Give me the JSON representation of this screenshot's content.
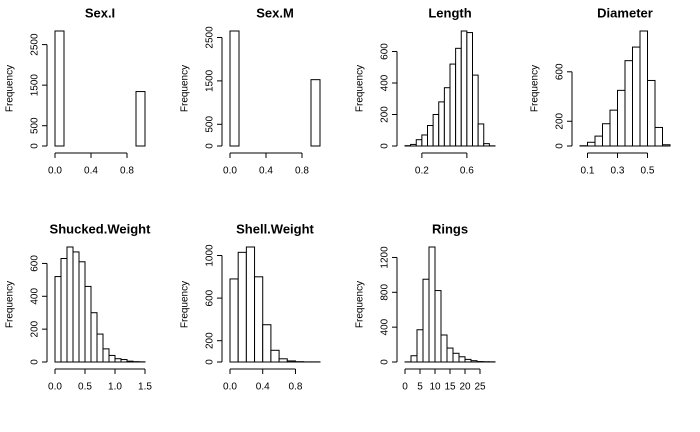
{
  "chart_data": [
    {
      "type": "histogram",
      "title": "Sex.I",
      "ylabel": "Frequency",
      "bins": [
        0,
        0.1,
        0.2,
        0.3,
        0.4,
        0.5,
        0.6,
        0.7,
        0.8,
        0.9,
        1.0
      ],
      "values": [
        2835,
        0,
        0,
        0,
        0,
        0,
        0,
        0,
        0,
        1342
      ],
      "xlim": [
        0,
        1
      ],
      "ylim": [
        0,
        2835
      ],
      "xticks": [
        {
          "value": 0,
          "label": "0.0"
        },
        0.4,
        0.8
      ],
      "yticks": [
        0,
        500,
        1500,
        2500
      ]
    },
    {
      "type": "histogram",
      "title": "Sex.M",
      "ylabel": "Frequency",
      "bins": [
        0,
        0.1,
        0.2,
        0.3,
        0.4,
        0.5,
        0.6,
        0.7,
        0.8,
        0.9,
        1.0
      ],
      "values": [
        2649,
        0,
        0,
        0,
        0,
        0,
        0,
        0,
        0,
        1528
      ],
      "xlim": [
        0,
        1
      ],
      "ylim": [
        0,
        2649
      ],
      "xticks": [
        {
          "value": 0,
          "label": "0.0"
        },
        0.4,
        0.8
      ],
      "yticks": [
        0,
        500,
        1500,
        2500
      ]
    },
    {
      "type": "histogram",
      "title": "Length",
      "ylabel": "Frequency",
      "bins": [
        0.05,
        0.1,
        0.15,
        0.2,
        0.25,
        0.3,
        0.35,
        0.4,
        0.45,
        0.5,
        0.55,
        0.6,
        0.65,
        0.7,
        0.75,
        0.8,
        0.85
      ],
      "values": [
        2,
        10,
        40,
        70,
        130,
        200,
        280,
        370,
        520,
        620,
        730,
        720,
        450,
        140,
        15,
        1
      ],
      "xlim": [
        0.05,
        0.85
      ],
      "ylim": [
        0,
        730
      ],
      "xticks": [
        0.2,
        0.6
      ],
      "yticks": [
        0,
        200,
        400,
        600
      ]
    },
    {
      "type": "histogram",
      "title": "Diameter",
      "ylabel": "Frequency",
      "bins": [
        0.05,
        0.1,
        0.15,
        0.2,
        0.25,
        0.3,
        0.35,
        0.4,
        0.45,
        0.5,
        0.55,
        0.6,
        0.65
      ],
      "values": [
        2,
        30,
        80,
        180,
        290,
        450,
        690,
        800,
        930,
        530,
        150,
        10
      ],
      "xlim": [
        0.05,
        0.65
      ],
      "ylim": [
        0,
        930
      ],
      "xticks": [
        0.1,
        0.3,
        0.5
      ],
      "yticks": [
        0,
        200,
        600
      ]
    },
    {
      "type": "histogram",
      "title": "Shucked.Weight",
      "ylabel": "Frequency",
      "bins": [
        0,
        0.1,
        0.2,
        0.3,
        0.4,
        0.5,
        0.6,
        0.7,
        0.8,
        0.9,
        1.0,
        1.1,
        1.2,
        1.3,
        1.4,
        1.5
      ],
      "values": [
        520,
        630,
        700,
        670,
        610,
        460,
        300,
        170,
        80,
        40,
        20,
        15,
        5,
        2,
        1
      ],
      "xlim": [
        0,
        1.5
      ],
      "ylim": [
        0,
        700
      ],
      "xticks": [
        {
          "value": 0,
          "label": "0.0"
        },
        0.5,
        {
          "value": 1,
          "label": "1.0"
        },
        1.5
      ],
      "yticks": [
        0,
        200,
        400,
        600
      ]
    },
    {
      "type": "histogram",
      "title": "Shell.Weight",
      "ylabel": "Frequency",
      "bins": [
        0,
        0.1,
        0.2,
        0.3,
        0.4,
        0.5,
        0.6,
        0.7,
        0.8,
        0.9,
        1.0,
        1.1
      ],
      "values": [
        780,
        1030,
        1080,
        800,
        350,
        110,
        30,
        10,
        3,
        1,
        1
      ],
      "xlim": [
        0,
        1.1
      ],
      "ylim": [
        0,
        1080
      ],
      "xticks": [
        {
          "value": 0,
          "label": "0.0"
        },
        0.4,
        0.8
      ],
      "yticks": [
        0,
        200,
        600,
        1000
      ]
    },
    {
      "type": "histogram",
      "title": "Rings",
      "ylabel": "Frequency",
      "bins": [
        0,
        2,
        4,
        6,
        8,
        10,
        12,
        14,
        16,
        18,
        20,
        22,
        24,
        26,
        28,
        30
      ],
      "values": [
        1,
        72,
        370,
        950,
        1320,
        820,
        310,
        160,
        100,
        60,
        30,
        15,
        5,
        3,
        2
      ],
      "xlim": [
        0,
        30
      ],
      "ylim": [
        0,
        1320
      ],
      "xticks": [
        0,
        5,
        10,
        15,
        20,
        25
      ],
      "yticks": [
        0,
        400,
        800,
        1200
      ]
    }
  ]
}
